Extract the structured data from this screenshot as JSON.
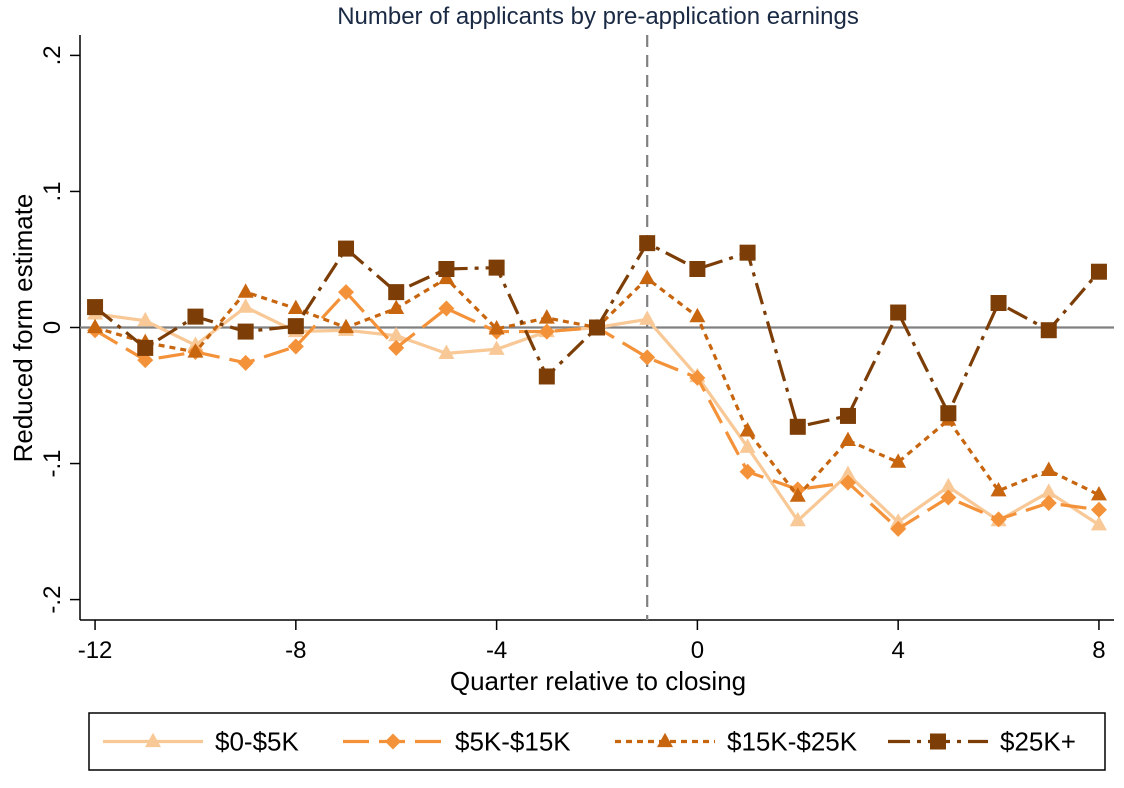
{
  "chart_data": {
    "type": "line",
    "title": "Number of applicants by pre-application earnings",
    "xlabel": "Quarter relative to closing",
    "ylabel": "Reduced form estimate",
    "xlim": [
      -12.3,
      8.3
    ],
    "ylim": [
      -0.215,
      0.215
    ],
    "x_ticks": [
      -12,
      -8,
      -4,
      0,
      4,
      8
    ],
    "x_tick_labels": [
      "-12",
      "-8",
      "-4",
      "0",
      "4",
      "8"
    ],
    "y_ticks": [
      -0.2,
      -0.1,
      0,
      0.1,
      0.2
    ],
    "y_tick_labels": [
      "-.2",
      "-.1",
      "0",
      ".1",
      ".2"
    ],
    "reference_hline": 0,
    "reference_vline": -1,
    "x": [
      -12,
      -11,
      -10,
      -9,
      -8,
      -7,
      -6,
      -5,
      -4,
      -3,
      -2,
      -1,
      0,
      1,
      2,
      3,
      4,
      5,
      6,
      7,
      8
    ],
    "series": [
      {
        "name": "$0-$5K",
        "color": "#f8c896",
        "marker": "triangle",
        "dash": "solid",
        "values": [
          0.01,
          0.005,
          -0.013,
          0.015,
          -0.003,
          -0.002,
          -0.006,
          -0.019,
          -0.016,
          -0.003,
          0.0,
          0.006,
          -0.036,
          -0.088,
          -0.142,
          -0.108,
          -0.143,
          -0.117,
          -0.142,
          -0.121,
          -0.145
        ]
      },
      {
        "name": "$5K-$15K",
        "color": "#f4923a",
        "marker": "diamond",
        "dash": "longdash",
        "values": [
          -0.002,
          -0.024,
          -0.018,
          -0.026,
          -0.014,
          0.026,
          -0.015,
          0.014,
          -0.003,
          -0.003,
          0.0,
          -0.022,
          -0.037,
          -0.106,
          -0.119,
          -0.114,
          -0.148,
          -0.125,
          -0.141,
          -0.129,
          -0.134
        ]
      },
      {
        "name": "$15K-$25K",
        "color": "#c8650f",
        "marker": "triangle",
        "dash": "shortdash",
        "values": [
          0.0,
          -0.011,
          -0.018,
          0.026,
          0.014,
          0.0,
          0.014,
          0.036,
          -0.001,
          0.007,
          0.0,
          0.036,
          0.008,
          -0.076,
          -0.124,
          -0.083,
          -0.099,
          -0.068,
          -0.12,
          -0.105,
          -0.123
        ]
      },
      {
        "name": "$25K+",
        "color": "#7c3d06",
        "marker": "square",
        "dash": "dashdot",
        "values": [
          0.015,
          -0.015,
          0.008,
          -0.003,
          0.001,
          0.058,
          0.026,
          0.043,
          0.044,
          -0.036,
          0.0,
          0.062,
          0.043,
          0.055,
          -0.073,
          -0.065,
          0.011,
          -0.063,
          0.018,
          -0.002,
          0.041
        ]
      }
    ],
    "legend_position": "bottom",
    "grid": false
  }
}
